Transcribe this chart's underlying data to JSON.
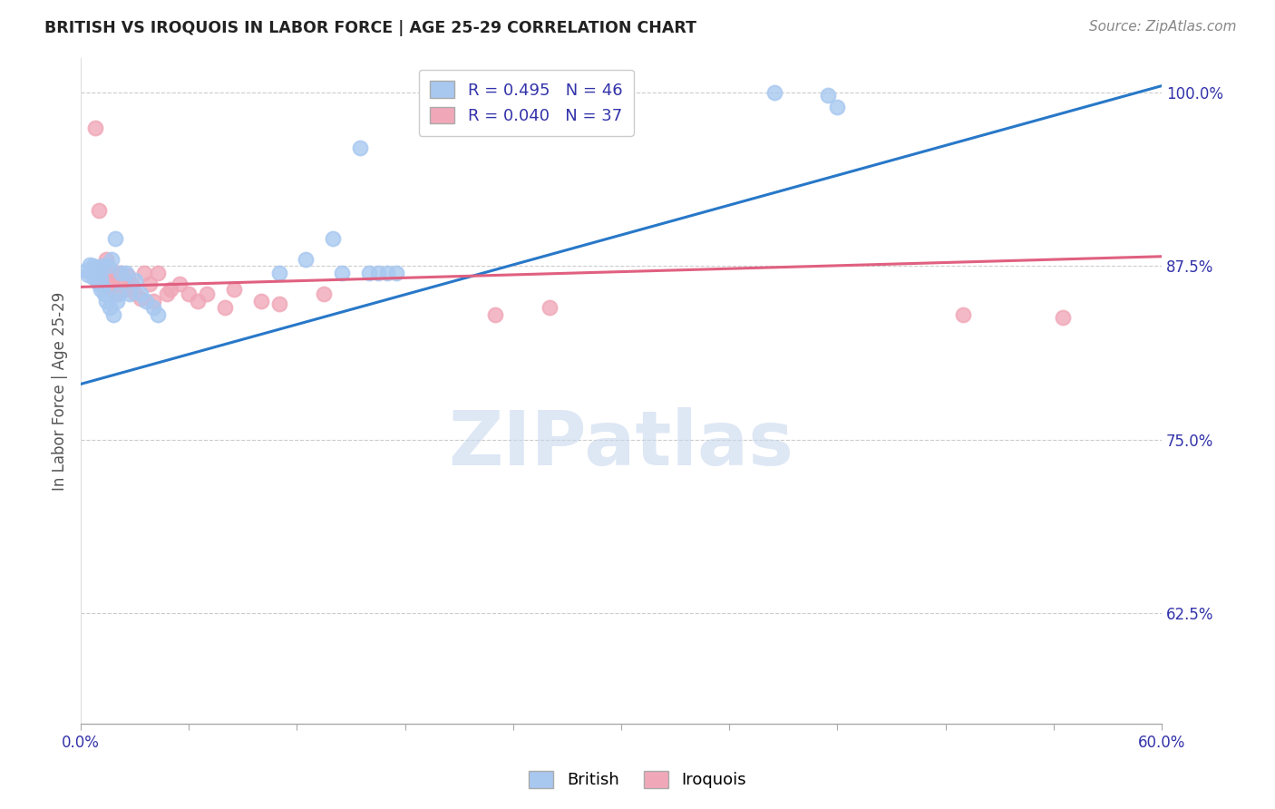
{
  "title": "BRITISH VS IROQUOIS IN LABOR FORCE | AGE 25-29 CORRELATION CHART",
  "source_text": "Source: ZipAtlas.com",
  "ylabel": "In Labor Force | Age 25-29",
  "xlim": [
    0.0,
    0.6
  ],
  "ylim": [
    0.545,
    1.025
  ],
  "xticks": [
    0.0,
    0.06,
    0.12,
    0.18,
    0.24,
    0.3,
    0.36,
    0.42,
    0.48,
    0.54,
    0.6
  ],
  "xticklabels": [
    "0.0%",
    "",
    "",
    "",
    "",
    "",
    "",
    "",
    "",
    "",
    "60.0%"
  ],
  "ytick_right_values": [
    0.625,
    0.75,
    0.875,
    1.0
  ],
  "ytick_right_labels": [
    "62.5%",
    "75.0%",
    "87.5%",
    "100.0%"
  ],
  "blue_R": 0.495,
  "blue_N": 46,
  "pink_R": 0.04,
  "pink_N": 37,
  "british_color": "#A8C8F0",
  "iroquois_color": "#F0A8B8",
  "blue_line_color": "#2878C8",
  "pink_line_color": "#E06080",
  "watermark_color": "#C8D8EE",
  "british_x": [
    0.003,
    0.004,
    0.005,
    0.006,
    0.006,
    0.007,
    0.007,
    0.008,
    0.008,
    0.009,
    0.009,
    0.01,
    0.01,
    0.011,
    0.011,
    0.012,
    0.012,
    0.013,
    0.014,
    0.015,
    0.016,
    0.017,
    0.018,
    0.019,
    0.02,
    0.021,
    0.022,
    0.025,
    0.027,
    0.03,
    0.033,
    0.036,
    0.04,
    0.043,
    0.11,
    0.125,
    0.14,
    0.145,
    0.155,
    0.16,
    0.165,
    0.17,
    0.175,
    0.385,
    0.415,
    0.42
  ],
  "british_y": [
    0.872,
    0.869,
    0.876,
    0.873,
    0.87,
    0.867,
    0.875,
    0.871,
    0.868,
    0.874,
    0.865,
    0.87,
    0.862,
    0.866,
    0.858,
    0.875,
    0.86,
    0.855,
    0.85,
    0.875,
    0.845,
    0.88,
    0.84,
    0.895,
    0.85,
    0.855,
    0.87,
    0.87,
    0.855,
    0.865,
    0.855,
    0.85,
    0.845,
    0.84,
    0.87,
    0.88,
    0.895,
    0.87,
    0.96,
    0.87,
    0.87,
    0.87,
    0.87,
    1.0,
    0.998,
    0.99
  ],
  "iroquois_x": [
    0.008,
    0.01,
    0.012,
    0.013,
    0.014,
    0.015,
    0.016,
    0.017,
    0.018,
    0.02,
    0.02,
    0.022,
    0.024,
    0.025,
    0.026,
    0.028,
    0.03,
    0.033,
    0.035,
    0.038,
    0.04,
    0.043,
    0.048,
    0.05,
    0.055,
    0.06,
    0.065,
    0.07,
    0.08,
    0.085,
    0.1,
    0.11,
    0.135,
    0.23,
    0.26,
    0.49,
    0.545
  ],
  "iroquois_y": [
    0.975,
    0.915,
    0.875,
    0.868,
    0.88,
    0.87,
    0.86,
    0.87,
    0.862,
    0.87,
    0.855,
    0.87,
    0.862,
    0.858,
    0.868,
    0.862,
    0.856,
    0.852,
    0.87,
    0.862,
    0.85,
    0.87,
    0.855,
    0.858,
    0.862,
    0.855,
    0.85,
    0.855,
    0.845,
    0.858,
    0.85,
    0.848,
    0.855,
    0.84,
    0.845,
    0.84,
    0.838
  ],
  "blue_line_x0": 0.0,
  "blue_line_y0": 0.79,
  "blue_line_x1": 0.6,
  "blue_line_y1": 1.005,
  "pink_line_x0": 0.0,
  "pink_line_x1": 0.6,
  "pink_line_y0": 0.86,
  "pink_line_y1": 0.882,
  "figsize": [
    14.06,
    8.92
  ],
  "dpi": 100
}
